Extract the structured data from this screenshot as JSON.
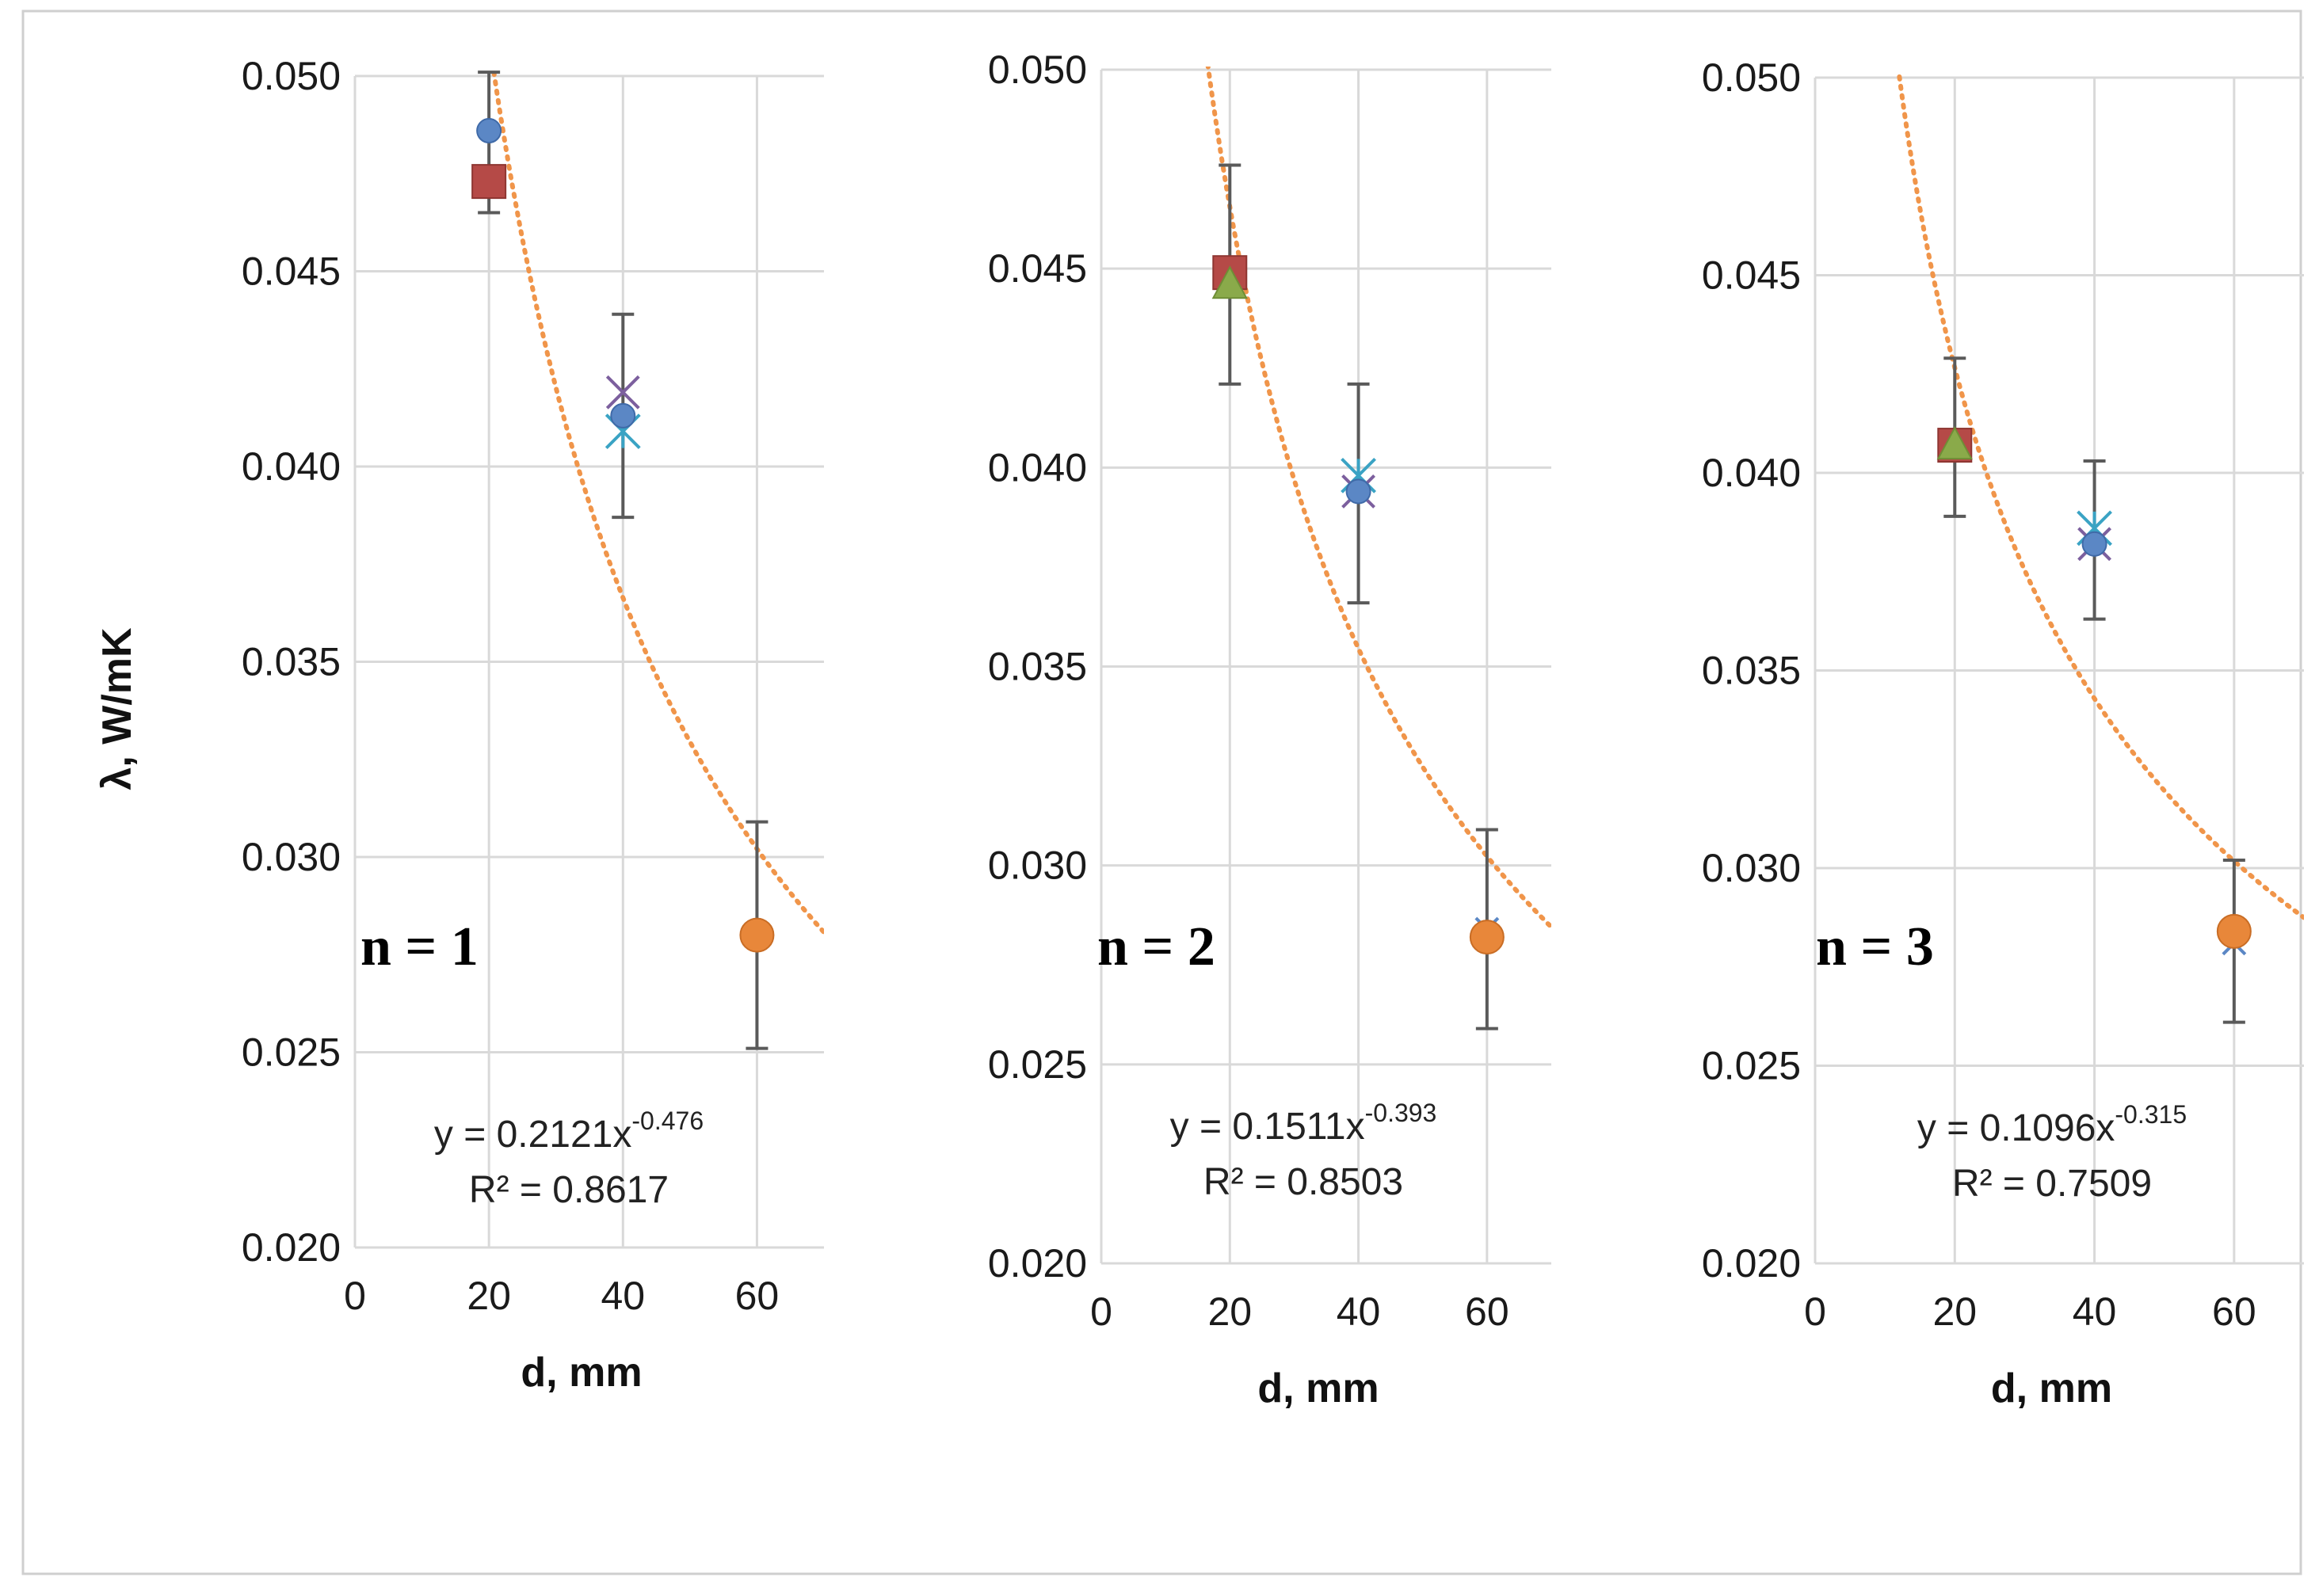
{
  "chart_data": {
    "type": "scatter",
    "ylabel": "λ, W/mK",
    "xlabel": "d, mm",
    "xlim": [
      0,
      70
    ],
    "ylim": [
      0.02,
      0.05
    ],
    "x_ticks": [
      "0",
      "20",
      "40",
      "60"
    ],
    "y_ticks": [
      "0.020",
      "0.025",
      "0.030",
      "0.035",
      "0.040",
      "0.045",
      "0.050"
    ],
    "colors": {
      "blue": "#5b87c5",
      "red": "#b54a47",
      "green": "#8aaa4a",
      "purple": "#7c5f9e",
      "teal": "#3aa3c4",
      "orange": "#e8873a",
      "trend": "#f0954a",
      "errorbar": "#5a5a5a",
      "grid": "#d9d9d9"
    },
    "panels": [
      {
        "label": "n = 1",
        "trendline": {
          "type": "power",
          "a": 0.2121,
          "b": -0.476,
          "equation": "y = 0.2121x",
          "exponent": "-0.476",
          "r2": "R² = 0.8617"
        },
        "error_bars": [
          {
            "x": 20,
            "y": 0.0483,
            "low": 0.0465,
            "high": 0.0501
          },
          {
            "x": 40,
            "y": 0.0413,
            "low": 0.0387,
            "high": 0.0439
          },
          {
            "x": 60,
            "y": 0.028,
            "low": 0.0251,
            "high": 0.0309
          }
        ],
        "points": [
          {
            "x": 20,
            "y": 0.0486,
            "marker": "circle",
            "color": "blue"
          },
          {
            "x": 20,
            "y": 0.0473,
            "marker": "square",
            "color": "red"
          },
          {
            "x": 40,
            "y": 0.0419,
            "marker": "x",
            "color": "purple"
          },
          {
            "x": 40,
            "y": 0.0409,
            "marker": "star",
            "color": "teal"
          },
          {
            "x": 40,
            "y": 0.0413,
            "marker": "circle",
            "color": "blue"
          },
          {
            "x": 60,
            "y": 0.028,
            "marker": "circle-big",
            "color": "orange"
          }
        ]
      },
      {
        "label": "n = 2",
        "trendline": {
          "type": "power",
          "a": 0.1511,
          "b": -0.393,
          "equation": "y = 0.1511x",
          "exponent": "-0.393",
          "r2": "R² = 0.8503"
        },
        "error_bars": [
          {
            "x": 20,
            "y": 0.0448,
            "low": 0.0421,
            "high": 0.0476
          },
          {
            "x": 40,
            "y": 0.0394,
            "low": 0.0366,
            "high": 0.0421
          },
          {
            "x": 60,
            "y": 0.0284,
            "low": 0.0259,
            "high": 0.0309
          }
        ],
        "points": [
          {
            "x": 20,
            "y": 0.0449,
            "marker": "square",
            "color": "red"
          },
          {
            "x": 20,
            "y": 0.0446,
            "marker": "triangle",
            "color": "green"
          },
          {
            "x": 40,
            "y": 0.0398,
            "marker": "star",
            "color": "teal"
          },
          {
            "x": 40,
            "y": 0.0394,
            "marker": "x",
            "color": "purple"
          },
          {
            "x": 40,
            "y": 0.0394,
            "marker": "circle",
            "color": "blue"
          },
          {
            "x": 60,
            "y": 0.0284,
            "marker": "x-small",
            "color": "blue"
          },
          {
            "x": 60,
            "y": 0.0282,
            "marker": "circle-big",
            "color": "orange"
          }
        ]
      },
      {
        "label": "n = 3",
        "trendline": {
          "type": "power",
          "a": 0.1096,
          "b": -0.315,
          "equation": "y = 0.1096x",
          "exponent": "-0.315",
          "r2": "R² = 0.7509"
        },
        "error_bars": [
          {
            "x": 20,
            "y": 0.0409,
            "low": 0.0389,
            "high": 0.0429
          },
          {
            "x": 40,
            "y": 0.0383,
            "low": 0.0363,
            "high": 0.0403
          },
          {
            "x": 60,
            "y": 0.0282,
            "low": 0.0261,
            "high": 0.0302
          }
        ],
        "points": [
          {
            "x": 20,
            "y": 0.0407,
            "marker": "square",
            "color": "red"
          },
          {
            "x": 20,
            "y": 0.0407,
            "marker": "triangle",
            "color": "green"
          },
          {
            "x": 40,
            "y": 0.0386,
            "marker": "star",
            "color": "teal"
          },
          {
            "x": 40,
            "y": 0.0382,
            "marker": "x",
            "color": "purple"
          },
          {
            "x": 40,
            "y": 0.0382,
            "marker": "circle",
            "color": "blue"
          },
          {
            "x": 60,
            "y": 0.0281,
            "marker": "x-small",
            "color": "blue"
          },
          {
            "x": 60,
            "y": 0.0284,
            "marker": "circle-big",
            "color": "orange"
          }
        ]
      }
    ]
  }
}
